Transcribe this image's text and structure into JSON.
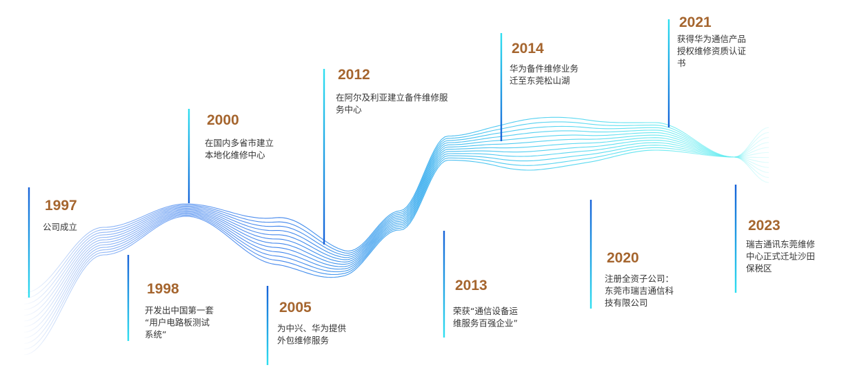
{
  "events": [
    {
      "year": "1997",
      "lines": [
        "公司成立"
      ]
    },
    {
      "year": "1998",
      "lines": [
        "开发出中国第一套",
        "“用户电路板测试",
        "系统”"
      ]
    },
    {
      "year": "2000",
      "lines": [
        "在国内多省市建立",
        "本地化维修中心"
      ]
    },
    {
      "year": "2005",
      "lines": [
        "为中兴、华为提供",
        "外包维修服务"
      ]
    },
    {
      "year": "2012",
      "lines": [
        "在阿尔及利亚建立备件维修服",
        "务中心"
      ]
    },
    {
      "year": "2013",
      "lines": [
        "荣获“通信设备运",
        "维服务百强企业”"
      ]
    },
    {
      "year": "2014",
      "lines": [
        "华为备件维修业务",
        "迁至东莞松山湖"
      ]
    },
    {
      "year": "2020",
      "lines": [
        "注册全资子公司：",
        "东莞市瑞吉通信科",
        "技有限公司"
      ]
    },
    {
      "year": "2021",
      "lines": [
        "获得华为通信产品",
        "授权维修资质认证",
        "书"
      ]
    },
    {
      "year": "2023",
      "lines": [
        "瑞吉通讯东莞维修",
        "中心正式迁址沙田",
        "保税区"
      ]
    }
  ]
}
